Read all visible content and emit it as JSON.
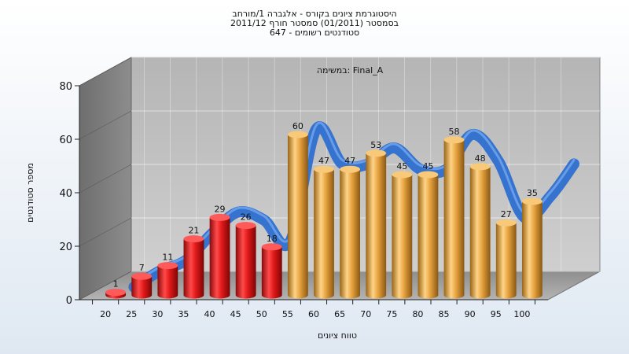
{
  "chart_data": {
    "type": "bar",
    "title_lines": [
      "היסטוגרמת ציונים בקורס - אלגברה 1/מורחב",
      "בסמסטר  (01/2011)  סמסטר חורף 2011/12",
      "סטודנטים רשומים - 647"
    ],
    "inner_label": "במשימה: Final_A",
    "xlabel": "טווח ציונים",
    "ylabel": "מספר סטודנטים",
    "ylim": [
      0,
      80
    ],
    "yticks": [
      0,
      20,
      40,
      60,
      80
    ],
    "grid": true,
    "categories": [
      "20",
      "25",
      "30",
      "35",
      "40",
      "45",
      "50",
      "55",
      "60",
      "65",
      "70",
      "75",
      "80",
      "85",
      "90",
      "95",
      "100"
    ],
    "values": [
      1,
      7,
      11,
      21,
      29,
      26,
      18,
      60,
      47,
      47,
      53,
      45,
      45,
      58,
      48,
      27,
      35
    ],
    "failing_color": "#e02020",
    "passing_color": "#e8a640",
    "trend_color": "#2e6fcf",
    "passing_threshold": 55
  }
}
